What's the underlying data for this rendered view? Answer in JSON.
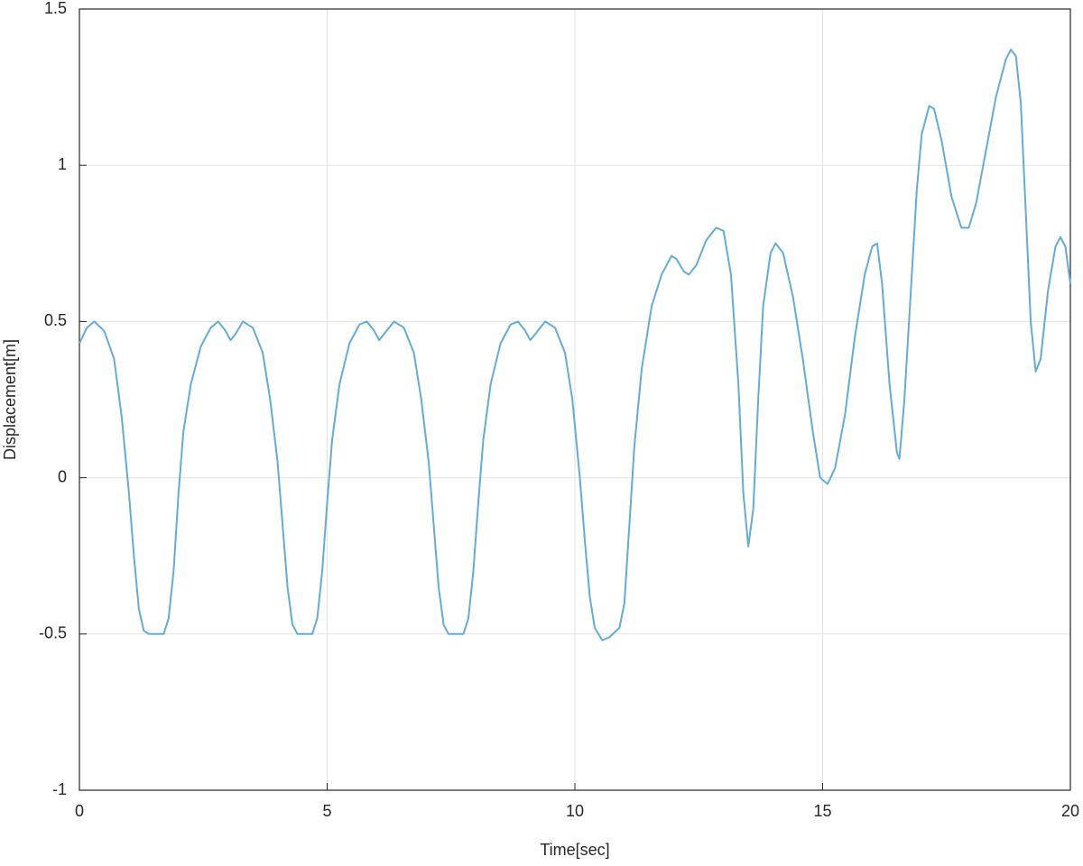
{
  "chart_data": {
    "type": "line",
    "xlabel": "Time[sec]",
    "ylabel": "Displacement[m]",
    "xlim": [
      0,
      20
    ],
    "ylim": [
      -1,
      1.5
    ],
    "xticks": [
      0,
      5,
      10,
      15,
      20
    ],
    "yticks": [
      -1,
      -0.5,
      0,
      0.5,
      1,
      1.5
    ],
    "grid": true,
    "series": [
      {
        "color": "#63acd8",
        "x": [
          0,
          0.15,
          0.3,
          0.5,
          0.7,
          0.85,
          1.0,
          1.1,
          1.2,
          1.3,
          1.4,
          1.7,
          1.8,
          1.9,
          2.0,
          2.1,
          2.25,
          2.45,
          2.65,
          2.8,
          2.95,
          3.05,
          3.15,
          3.3,
          3.5,
          3.7,
          3.85,
          4.0,
          4.1,
          4.2,
          4.3,
          4.4,
          4.7,
          4.8,
          4.9,
          5.0,
          5.1,
          5.25,
          5.45,
          5.65,
          5.8,
          5.95,
          6.05,
          6.15,
          6.35,
          6.55,
          6.75,
          6.9,
          7.05,
          7.15,
          7.25,
          7.35,
          7.45,
          7.75,
          7.85,
          7.95,
          8.05,
          8.15,
          8.3,
          8.5,
          8.7,
          8.85,
          9.0,
          9.1,
          9.2,
          9.4,
          9.6,
          9.8,
          9.95,
          10.1,
          10.2,
          10.3,
          10.4,
          10.55,
          10.7,
          10.9,
          11.0,
          11.1,
          11.2,
          11.35,
          11.55,
          11.75,
          11.95,
          12.05,
          12.2,
          12.3,
          12.45,
          12.65,
          12.85,
          13.0,
          13.15,
          13.3,
          13.4,
          13.5,
          13.6,
          13.7,
          13.8,
          13.95,
          14.05,
          14.2,
          14.4,
          14.6,
          14.8,
          14.95,
          15.1,
          15.25,
          15.45,
          15.65,
          15.85,
          16.0,
          16.1,
          16.2,
          16.35,
          16.5,
          16.55,
          16.65,
          16.8,
          16.9,
          17.0,
          17.15,
          17.25,
          17.4,
          17.6,
          17.8,
          17.95,
          18.1,
          18.3,
          18.5,
          18.7,
          18.8,
          18.9,
          19.0,
          19.1,
          19.2,
          19.3,
          19.4,
          19.55,
          19.7,
          19.8,
          19.9,
          20.0
        ],
        "values": [
          0.43,
          0.48,
          0.5,
          0.47,
          0.38,
          0.2,
          -0.05,
          -0.25,
          -0.42,
          -0.49,
          -0.5,
          -0.5,
          -0.45,
          -0.3,
          -0.05,
          0.15,
          0.3,
          0.42,
          0.48,
          0.5,
          0.47,
          0.44,
          0.46,
          0.5,
          0.48,
          0.4,
          0.25,
          0.05,
          -0.15,
          -0.35,
          -0.47,
          -0.5,
          -0.5,
          -0.45,
          -0.3,
          -0.08,
          0.12,
          0.3,
          0.43,
          0.49,
          0.5,
          0.47,
          0.44,
          0.46,
          0.5,
          0.48,
          0.4,
          0.25,
          0.05,
          -0.15,
          -0.35,
          -0.47,
          -0.5,
          -0.5,
          -0.45,
          -0.3,
          -0.08,
          0.12,
          0.3,
          0.43,
          0.49,
          0.5,
          0.47,
          0.44,
          0.46,
          0.5,
          0.48,
          0.4,
          0.25,
          0.0,
          -0.2,
          -0.38,
          -0.48,
          -0.52,
          -0.51,
          -0.48,
          -0.4,
          -0.15,
          0.1,
          0.35,
          0.55,
          0.65,
          0.71,
          0.7,
          0.66,
          0.65,
          0.68,
          0.76,
          0.8,
          0.79,
          0.65,
          0.3,
          -0.05,
          -0.22,
          -0.1,
          0.25,
          0.55,
          0.72,
          0.75,
          0.72,
          0.58,
          0.38,
          0.15,
          0.0,
          -0.02,
          0.03,
          0.2,
          0.45,
          0.65,
          0.74,
          0.75,
          0.62,
          0.3,
          0.08,
          0.06,
          0.25,
          0.65,
          0.92,
          1.1,
          1.19,
          1.18,
          1.08,
          0.9,
          0.8,
          0.8,
          0.88,
          1.05,
          1.22,
          1.34,
          1.37,
          1.35,
          1.2,
          0.85,
          0.5,
          0.34,
          0.38,
          0.6,
          0.74,
          0.77,
          0.74,
          0.62
        ]
      }
    ]
  }
}
